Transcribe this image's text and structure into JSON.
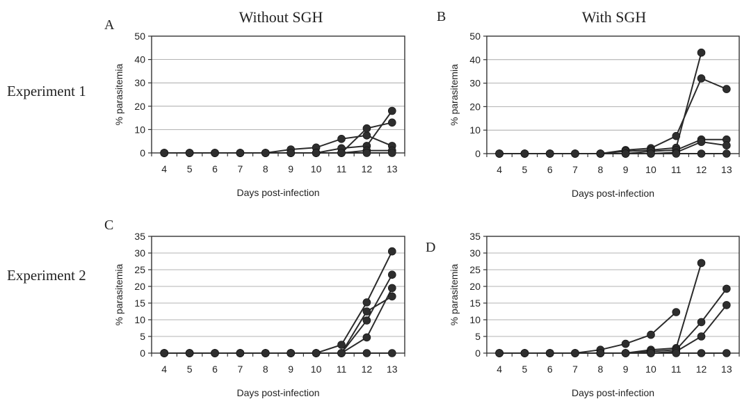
{
  "column_titles": [
    "Without SGH",
    "With SGH"
  ],
  "row_labels": [
    "Experiment 1",
    "Experiment 2"
  ],
  "chart_data": [
    {
      "panel": "A",
      "type": "line",
      "xlabel": "Days post-infection",
      "ylabel": "% parasitemia",
      "x": [
        4,
        5,
        6,
        7,
        8,
        9,
        10,
        11,
        12,
        13
      ],
      "ylim": [
        0,
        50
      ],
      "yticks": [
        0,
        10,
        20,
        30,
        40,
        50
      ],
      "grid": true,
      "series": [
        {
          "values": [
            0,
            0,
            0,
            0,
            0,
            1.5,
            2.3,
            6,
            7.5,
            3
          ]
        },
        {
          "values": [
            0,
            0,
            0,
            0,
            0,
            0,
            0,
            0,
            10.5,
            13
          ]
        },
        {
          "values": [
            0,
            0,
            0,
            0,
            0,
            0,
            0,
            2,
            3,
            18
          ]
        },
        {
          "values": [
            0,
            0,
            0,
            0,
            0,
            0,
            0,
            0,
            1,
            1
          ]
        },
        {
          "values": [
            0,
            0,
            0,
            0,
            0,
            0,
            0,
            0,
            0,
            0
          ]
        }
      ]
    },
    {
      "panel": "B",
      "type": "line",
      "xlabel": "Days post-infection",
      "ylabel": "% parasitemia",
      "x": [
        4,
        5,
        6,
        7,
        8,
        9,
        10,
        11,
        12,
        13
      ],
      "ylim": [
        0,
        50
      ],
      "yticks": [
        0,
        10,
        20,
        30,
        40,
        50
      ],
      "grid": true,
      "series": [
        {
          "values": [
            0,
            0,
            0,
            0,
            0,
            1.5,
            2.3,
            7.5,
            32,
            27.5
          ]
        },
        {
          "values": [
            0,
            0,
            0,
            0,
            0,
            1,
            1.5,
            2.5,
            43,
            null
          ]
        },
        {
          "values": [
            0,
            0,
            0,
            0,
            0,
            0,
            1,
            1.5,
            6,
            6
          ]
        },
        {
          "values": [
            0,
            0,
            0,
            0,
            0,
            0,
            0,
            0.5,
            5,
            3.5
          ]
        },
        {
          "values": [
            0,
            0,
            0,
            0,
            0,
            0,
            0,
            0,
            0,
            0
          ]
        }
      ]
    },
    {
      "panel": "C",
      "type": "line",
      "xlabel": "Days post-infection",
      "ylabel": "% parasitemia",
      "x": [
        4,
        5,
        6,
        7,
        8,
        9,
        10,
        11,
        12,
        13
      ],
      "ylim": [
        0,
        35
      ],
      "yticks": [
        0,
        5,
        10,
        15,
        20,
        25,
        30,
        35
      ],
      "grid": true,
      "series": [
        {
          "values": [
            0,
            0,
            0,
            0,
            0,
            0,
            0,
            2.5,
            15.2,
            30.5
          ]
        },
        {
          "values": [
            0,
            0,
            0,
            0,
            0,
            0,
            0,
            0,
            12.5,
            17
          ]
        },
        {
          "values": [
            0,
            0,
            0,
            0,
            0,
            0,
            0,
            0,
            9.8,
            23.5
          ]
        },
        {
          "values": [
            0,
            0,
            0,
            0,
            0,
            0,
            0,
            0,
            4.7,
            19.5
          ]
        },
        {
          "values": [
            0,
            0,
            0,
            0,
            0,
            0,
            0,
            0,
            0,
            0
          ]
        }
      ]
    },
    {
      "panel": "D",
      "type": "line",
      "xlabel": "Days post-infection",
      "ylabel": "% parasitemia",
      "x": [
        4,
        5,
        6,
        7,
        8,
        9,
        10,
        11,
        12,
        13
      ],
      "ylim": [
        0,
        35
      ],
      "yticks": [
        0,
        5,
        10,
        15,
        20,
        25,
        30,
        35
      ],
      "grid": true,
      "series": [
        {
          "values": [
            0,
            0,
            0,
            0,
            1,
            2.8,
            5.5,
            12.3,
            null,
            null
          ]
        },
        {
          "values": [
            0,
            0,
            0,
            0,
            0,
            0,
            1,
            1.5,
            27,
            null
          ]
        },
        {
          "values": [
            0,
            0,
            0,
            0,
            0,
            0,
            0.5,
            1,
            9.3,
            19.3
          ]
        },
        {
          "values": [
            0,
            0,
            0,
            0,
            0,
            0,
            0,
            0.5,
            5,
            14.4
          ]
        },
        {
          "values": [
            0,
            0,
            0,
            0,
            0,
            0,
            0,
            0,
            0,
            0
          ]
        }
      ]
    }
  ]
}
